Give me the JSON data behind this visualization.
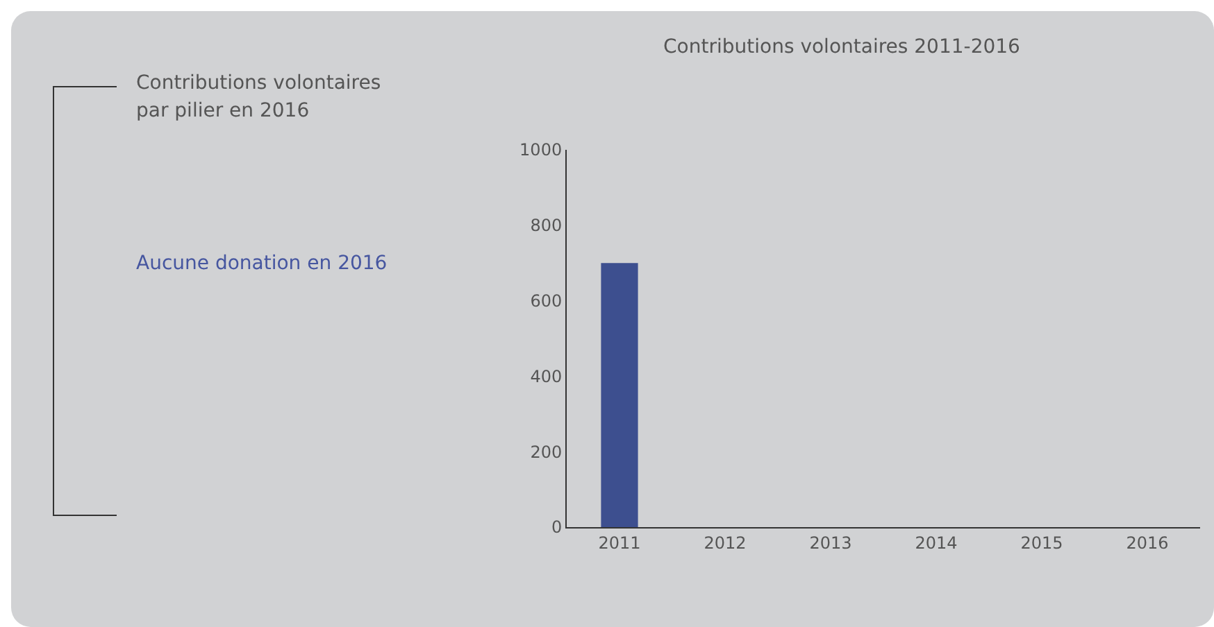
{
  "chart_data": [
    {
      "type": "other",
      "title": "Contributions volontaires par pilier en 2016",
      "annotations": [
        "Aucune donation en 2016"
      ]
    },
    {
      "type": "bar",
      "title": "Contributions volontaires 2011-2016",
      "categories": [
        "2011",
        "2012",
        "2013",
        "2014",
        "2015",
        "2016"
      ],
      "values": [
        700,
        0,
        0,
        0,
        0,
        0
      ],
      "color": "#3d4f8f",
      "ylim": [
        0,
        1000
      ],
      "yticks": [
        0,
        200,
        400,
        600,
        800,
        1000
      ],
      "grid": false
    }
  ]
}
